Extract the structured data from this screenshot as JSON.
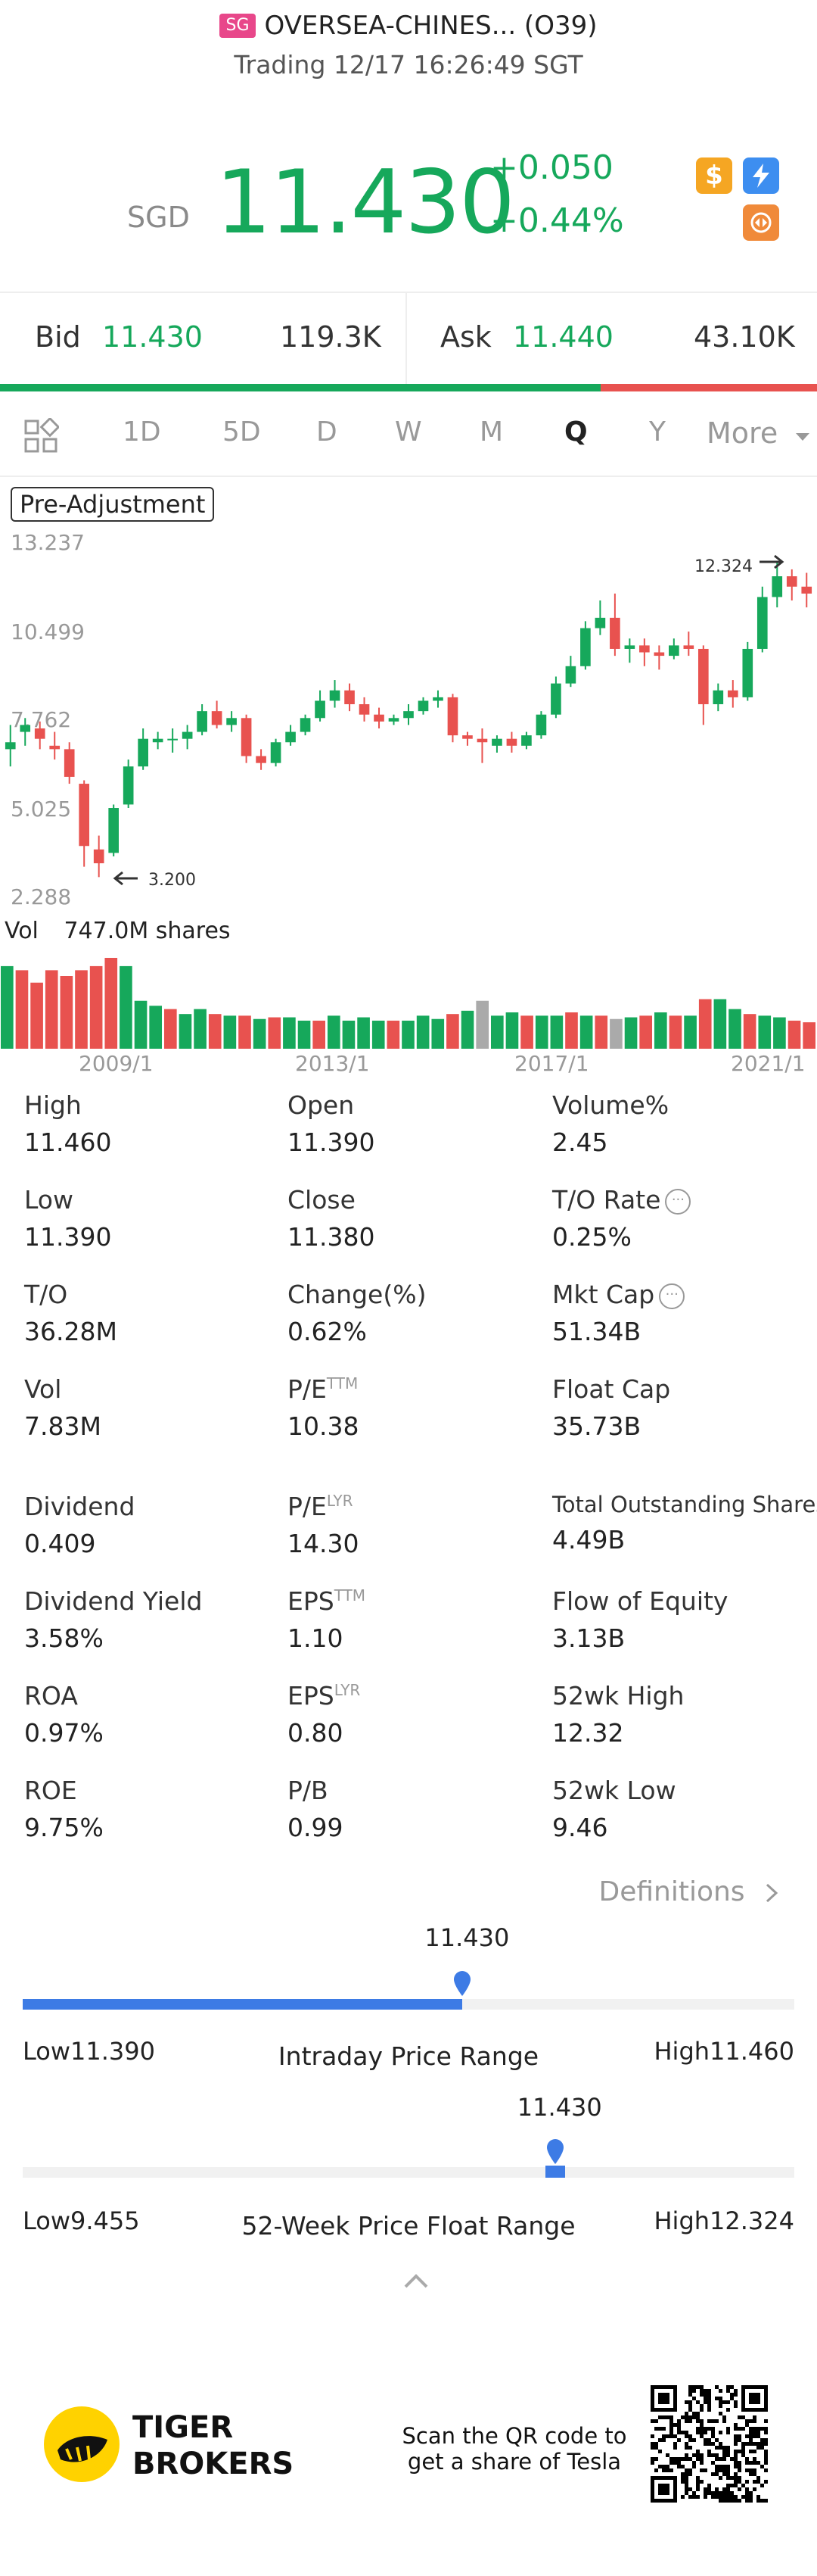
{
  "header": {
    "market_badge": "SG",
    "stock_name": "OVERSEA-CHINES... (O39)",
    "status": "Trading 12/17 16:26:49 SGT"
  },
  "quote": {
    "currency": "SGD",
    "price": "11.430",
    "change": "+0.050",
    "change_pct": "+0.44%",
    "color": "#16a85b",
    "icons": [
      "dollar-icon",
      "flash-icon",
      "swap-icon"
    ]
  },
  "bidask": {
    "bid_label": "Bid",
    "bid_price": "11.430",
    "bid_size": "119.3K",
    "ask_label": "Ask",
    "ask_price": "11.440",
    "ask_size": "43.10K",
    "bid_fraction": 0.735
  },
  "tabs": {
    "items": [
      "1D",
      "5D",
      "D",
      "W",
      "M",
      "Q",
      "Y",
      "More"
    ],
    "active": "Q"
  },
  "chart": {
    "pre_adjustment_label": "Pre-Adjustment",
    "y_ticks": [
      "13.237",
      "10.499",
      "7.762",
      "5.025",
      "2.288"
    ],
    "high_label": "12.324",
    "low_label": "3.200",
    "vol_label": "Vol",
    "vol_value": "747.0M shares",
    "x_ticks": [
      "2009/1",
      "2013/1",
      "2017/1",
      "2021/1"
    ]
  },
  "chart_data": {
    "type": "candlestick",
    "ylim": [
      2.288,
      13.237
    ],
    "max_marker": 12.324,
    "min_marker": 3.2,
    "candles": [
      {
        "o": 6.9,
        "c": 7.1,
        "h": 7.6,
        "l": 6.4
      },
      {
        "o": 7.4,
        "c": 7.6,
        "h": 7.8,
        "l": 7.0
      },
      {
        "o": 7.5,
        "c": 7.2,
        "h": 7.7,
        "l": 6.9
      },
      {
        "o": 7.0,
        "c": 6.9,
        "h": 7.4,
        "l": 6.6
      },
      {
        "o": 6.9,
        "c": 6.1,
        "h": 7.1,
        "l": 5.9
      },
      {
        "o": 5.9,
        "c": 4.1,
        "h": 6.0,
        "l": 3.5
      },
      {
        "o": 4.0,
        "c": 3.6,
        "h": 4.4,
        "l": 3.2
      },
      {
        "o": 3.9,
        "c": 5.2,
        "h": 5.3,
        "l": 3.8
      },
      {
        "o": 5.3,
        "c": 6.4,
        "h": 6.6,
        "l": 5.2
      },
      {
        "o": 6.4,
        "c": 7.2,
        "h": 7.5,
        "l": 6.3
      },
      {
        "o": 7.1,
        "c": 7.2,
        "h": 7.4,
        "l": 6.9
      },
      {
        "o": 7.2,
        "c": 7.2,
        "h": 7.5,
        "l": 6.8
      },
      {
        "o": 7.2,
        "c": 7.4,
        "h": 7.6,
        "l": 6.9
      },
      {
        "o": 7.4,
        "c": 8.0,
        "h": 8.2,
        "l": 7.3
      },
      {
        "o": 8.0,
        "c": 7.6,
        "h": 8.3,
        "l": 7.5
      },
      {
        "o": 7.6,
        "c": 7.8,
        "h": 8.0,
        "l": 7.4
      },
      {
        "o": 7.8,
        "c": 6.7,
        "h": 7.9,
        "l": 6.5
      },
      {
        "o": 6.7,
        "c": 6.5,
        "h": 6.9,
        "l": 6.3
      },
      {
        "o": 6.5,
        "c": 7.1,
        "h": 7.2,
        "l": 6.4
      },
      {
        "o": 7.1,
        "c": 7.4,
        "h": 7.6,
        "l": 7.0
      },
      {
        "o": 7.4,
        "c": 7.8,
        "h": 7.9,
        "l": 7.3
      },
      {
        "o": 7.8,
        "c": 8.3,
        "h": 8.6,
        "l": 7.7
      },
      {
        "o": 8.3,
        "c": 8.6,
        "h": 8.9,
        "l": 8.1
      },
      {
        "o": 8.6,
        "c": 8.2,
        "h": 8.8,
        "l": 8.0
      },
      {
        "o": 8.2,
        "c": 7.9,
        "h": 8.4,
        "l": 7.7
      },
      {
        "o": 7.9,
        "c": 7.7,
        "h": 8.1,
        "l": 7.5
      },
      {
        "o": 7.7,
        "c": 7.8,
        "h": 7.9,
        "l": 7.6
      },
      {
        "o": 7.8,
        "c": 8.0,
        "h": 8.2,
        "l": 7.6
      },
      {
        "o": 8.0,
        "c": 8.3,
        "h": 8.4,
        "l": 7.9
      },
      {
        "o": 8.3,
        "c": 8.4,
        "h": 8.6,
        "l": 8.1
      },
      {
        "o": 8.4,
        "c": 7.3,
        "h": 8.5,
        "l": 7.1
      },
      {
        "o": 7.3,
        "c": 7.2,
        "h": 7.4,
        "l": 7.0
      },
      {
        "o": 7.2,
        "c": 7.1,
        "h": 7.5,
        "l": 6.5
      },
      {
        "o": 7.0,
        "c": 7.2,
        "h": 7.3,
        "l": 6.8
      },
      {
        "o": 7.2,
        "c": 7.0,
        "h": 7.4,
        "l": 6.8
      },
      {
        "o": 7.0,
        "c": 7.3,
        "h": 7.4,
        "l": 6.9
      },
      {
        "o": 7.3,
        "c": 7.9,
        "h": 8.0,
        "l": 7.2
      },
      {
        "o": 7.9,
        "c": 8.8,
        "h": 9.0,
        "l": 7.8
      },
      {
        "o": 8.8,
        "c": 9.3,
        "h": 9.6,
        "l": 8.7
      },
      {
        "o": 9.3,
        "c": 10.4,
        "h": 10.6,
        "l": 9.2
      },
      {
        "o": 10.4,
        "c": 10.7,
        "h": 11.2,
        "l": 10.2
      },
      {
        "o": 10.7,
        "c": 9.8,
        "h": 11.4,
        "l": 9.6
      },
      {
        "o": 9.8,
        "c": 9.9,
        "h": 10.1,
        "l": 9.4
      },
      {
        "o": 9.9,
        "c": 9.7,
        "h": 10.1,
        "l": 9.3
      },
      {
        "o": 9.7,
        "c": 9.6,
        "h": 9.9,
        "l": 9.2
      },
      {
        "o": 9.6,
        "c": 9.9,
        "h": 10.1,
        "l": 9.5
      },
      {
        "o": 9.9,
        "c": 9.8,
        "h": 10.3,
        "l": 9.6
      },
      {
        "o": 9.8,
        "c": 8.2,
        "h": 9.9,
        "l": 7.6
      },
      {
        "o": 8.2,
        "c": 8.6,
        "h": 8.8,
        "l": 8.0
      },
      {
        "o": 8.6,
        "c": 8.4,
        "h": 8.9,
        "l": 8.1
      },
      {
        "o": 8.4,
        "c": 9.8,
        "h": 10.0,
        "l": 8.3
      },
      {
        "o": 9.8,
        "c": 11.3,
        "h": 11.6,
        "l": 9.7
      },
      {
        "o": 11.3,
        "c": 11.9,
        "h": 12.3,
        "l": 11.0
      },
      {
        "o": 11.9,
        "c": 11.6,
        "h": 12.1,
        "l": 11.2
      },
      {
        "o": 11.6,
        "c": 11.4,
        "h": 12.0,
        "l": 11.0
      }
    ],
    "volume": [
      100,
      95,
      80,
      95,
      88,
      95,
      100,
      110,
      100,
      58,
      52,
      48,
      42,
      48,
      42,
      40,
      40,
      36,
      38,
      38,
      34,
      34,
      40,
      34,
      38,
      34,
      34,
      34,
      40,
      36,
      42,
      46,
      58,
      40,
      44,
      40,
      40,
      40,
      44,
      40,
      40,
      36,
      38,
      40,
      44,
      40,
      40,
      60,
      60,
      48,
      42,
      40,
      38,
      34,
      32
    ],
    "volume_colors": [
      "g",
      "r",
      "r",
      "r",
      "r",
      "r",
      "r",
      "r",
      "g",
      "g",
      "g",
      "r",
      "g",
      "g",
      "r",
      "g",
      "r",
      "g",
      "r",
      "g",
      "g",
      "r",
      "g",
      "g",
      "g",
      "g",
      "r",
      "g",
      "g",
      "g",
      "r",
      "g",
      "gr",
      "g",
      "g",
      "r",
      "g",
      "g",
      "r",
      "g",
      "r",
      "gr",
      "g",
      "r",
      "g",
      "r",
      "g",
      "r",
      "g",
      "g",
      "r",
      "g",
      "g",
      "r",
      "r"
    ]
  },
  "stats": [
    {
      "k": "High",
      "v": "11.460"
    },
    {
      "k": "Open",
      "v": "11.390"
    },
    {
      "k": "Volume%",
      "v": "2.45"
    },
    {
      "k": "Low",
      "v": "11.390"
    },
    {
      "k": "Close",
      "v": "11.380"
    },
    {
      "k": "T/O Rate",
      "v": "0.25%"
    },
    {
      "k": "T/O",
      "v": "36.28M"
    },
    {
      "k": "Change(%)",
      "v": "0.62%"
    },
    {
      "k": "Mkt Cap",
      "v": "51.34B"
    },
    {
      "k": "Vol",
      "v": "7.83M"
    },
    {
      "k": "P/E",
      "v": "10.38",
      "sup": "TTM"
    },
    {
      "k": "Float Cap",
      "v": "35.73B"
    },
    {
      "k": "Dividend",
      "v": "0.409"
    },
    {
      "k": "P/E",
      "v": "14.30",
      "sup": "LYR"
    },
    {
      "k": "Total Outstanding Shares",
      "v": "4.49B"
    },
    {
      "k": "Dividend Yield",
      "v": "3.58%"
    },
    {
      "k": "EPS",
      "v": "1.10",
      "sup": "TTM"
    },
    {
      "k": "Flow of Equity",
      "v": "3.13B"
    },
    {
      "k": "ROA",
      "v": "0.97%"
    },
    {
      "k": "EPS",
      "v": "0.80",
      "sup": "LYR"
    },
    {
      "k": "52wk High",
      "v": "12.32"
    },
    {
      "k": "ROE",
      "v": "9.75%"
    },
    {
      "k": "P/B",
      "v": "0.99"
    },
    {
      "k": "52wk Low",
      "v": "9.46"
    }
  ],
  "definitions_label": "Definitions",
  "intraday_range": {
    "current": "11.430",
    "low": "Low11.390",
    "high": "High11.460",
    "name": "Intraday Price Range",
    "position": 0.57
  },
  "week52_range": {
    "current": "11.430",
    "low": "Low9.455",
    "high": "High12.324",
    "name": "52-Week Price Float Range",
    "position": 0.69
  },
  "footer": {
    "brand_line1": "TIGER",
    "brand_line2": "BROKERS",
    "scan_line1": "Scan the QR code to",
    "scan_line2": "get a share of Tesla"
  }
}
